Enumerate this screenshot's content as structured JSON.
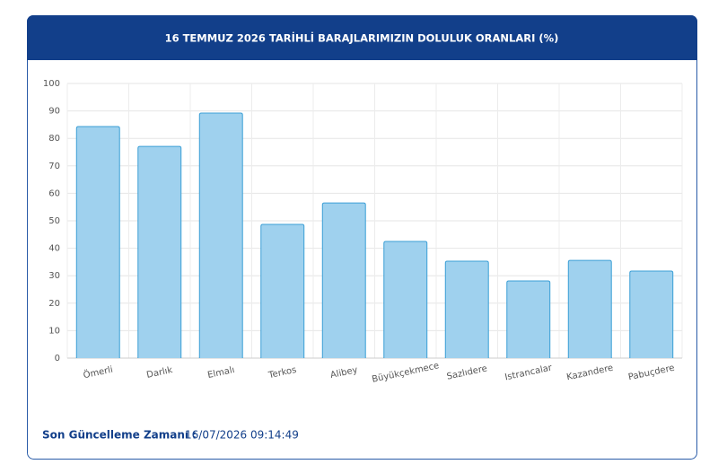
{
  "chart_data": {
    "type": "bar",
    "title": "16 TEMMUZ 2026 TARİHLİ BARAJLARIMIZIN DOLULUK ORANLARI (%)",
    "categories": [
      "Ömerli",
      "Darlık",
      "Elmalı",
      "Terkos",
      "Alibey",
      "Büyükçekmece",
      "Sazlıdere",
      "Istrancalar",
      "Kazandere",
      "Pabuçdere"
    ],
    "values": [
      84.3,
      77.1,
      89.2,
      48.7,
      56.5,
      42.5,
      35.3,
      28.1,
      35.6,
      31.7
    ],
    "color": "#9fd1ee",
    "border_color": "#3b9fd6",
    "ylim": [
      0,
      100
    ],
    "yticks": [
      0,
      10,
      20,
      30,
      40,
      50,
      60,
      70,
      80,
      90,
      100
    ],
    "grid": true
  },
  "footer": {
    "label": "Son Güncelleme Zamanı :",
    "value": "16/07/2026 09:14:49"
  }
}
